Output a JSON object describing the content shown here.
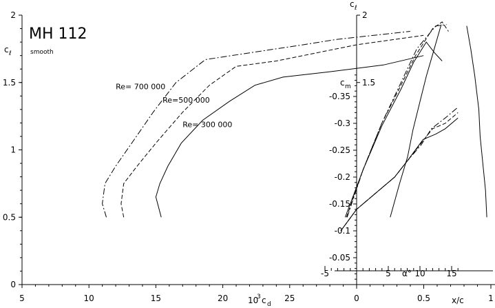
{
  "chart_data": {
    "type": "line",
    "title": "MH 112",
    "subtitle": "smooth",
    "polar": {
      "xlabel_prefix": "10",
      "xlabel_exp": "3",
      "xlabel_var": "c",
      "xlabel_sub": "d",
      "ylabel_var": "c",
      "ylabel_sub": "ℓ",
      "xlim": [
        5,
        30
      ],
      "ylim": [
        0,
        2
      ],
      "x_ticks": [
        5,
        10,
        15,
        20,
        25
      ],
      "y_ticks": [
        {
          "v": 0,
          "t": "0"
        },
        {
          "v": 0.5,
          "t": "0.5"
        },
        {
          "v": 1,
          "t": "1"
        },
        {
          "v": 1.5,
          "t": "1.5"
        },
        {
          "v": 2,
          "t": "2"
        }
      ],
      "series": [
        {
          "name": "Re= 700 000",
          "dash": "9 3 2 3",
          "points": [
            [
              11.3,
              0.5
            ],
            [
              11.0,
              0.6
            ],
            [
              11.2,
              0.75
            ],
            [
              12.0,
              0.88
            ],
            [
              13.2,
              1.05
            ],
            [
              14.8,
              1.28
            ],
            [
              16.5,
              1.5
            ],
            [
              18.7,
              1.67
            ],
            [
              22.0,
              1.72
            ],
            [
              26.0,
              1.78
            ],
            [
              28.5,
              1.82
            ],
            [
              34.0,
              1.88
            ]
          ]
        },
        {
          "name": "Re=500 000",
          "dash": "6 3",
          "points": [
            [
              12.6,
              0.5
            ],
            [
              12.4,
              0.6
            ],
            [
              12.6,
              0.75
            ],
            [
              13.6,
              0.88
            ],
            [
              15.0,
              1.05
            ],
            [
              17.0,
              1.28
            ],
            [
              19.0,
              1.48
            ],
            [
              21.0,
              1.62
            ],
            [
              24.0,
              1.66
            ],
            [
              27.5,
              1.73
            ],
            [
              30.0,
              1.78
            ],
            [
              35.0,
              1.85
            ]
          ]
        },
        {
          "name": "Re= 300 000",
          "dash": "",
          "points": [
            [
              15.4,
              0.5
            ],
            [
              15.0,
              0.65
            ],
            [
              15.3,
              0.75
            ],
            [
              15.9,
              0.88
            ],
            [
              16.9,
              1.05
            ],
            [
              18.5,
              1.22
            ],
            [
              20.5,
              1.36
            ],
            [
              22.4,
              1.48
            ],
            [
              24.5,
              1.54
            ],
            [
              28.0,
              1.58
            ],
            [
              32.0,
              1.63
            ],
            [
              35.0,
              1.7
            ]
          ]
        }
      ],
      "labels_pos": [
        [
          12.0,
          1.45
        ],
        [
          15.5,
          1.35
        ],
        [
          17.0,
          1.17
        ]
      ]
    },
    "alpha": {
      "xlabel": "α°",
      "xlim": [
        -5,
        16
      ],
      "x_ticks": [
        -5,
        5,
        10,
        15
      ],
      "series": [
        {
          "name": "Re= 700 000",
          "dash": "9 3 2 3",
          "points": [
            [
              -1.5,
              0.5
            ],
            [
              1,
              0.85
            ],
            [
              4,
              1.2
            ],
            [
              7,
              1.5
            ],
            [
              9.5,
              1.75
            ],
            [
              12.5,
              1.92
            ],
            [
              14.2,
              1.93
            ]
          ]
        },
        {
          "name": "Re=500 000",
          "dash": "6 3",
          "points": [
            [
              -1.6,
              0.5
            ],
            [
              1,
              0.85
            ],
            [
              4,
              1.2
            ],
            [
              7,
              1.48
            ],
            [
              9.3,
              1.7
            ],
            [
              12.0,
              1.9
            ],
            [
              13.5,
              1.95
            ],
            [
              14.5,
              1.88
            ]
          ]
        },
        {
          "name": "Re= 300 000",
          "dash": "",
          "points": [
            [
              -1.8,
              0.5
            ],
            [
              1,
              0.85
            ],
            [
              4,
              1.18
            ],
            [
              7,
              1.45
            ],
            [
              9.0,
              1.65
            ],
            [
              11.0,
              1.8
            ],
            [
              12.3,
              1.72
            ],
            [
              13.5,
              1.66
            ]
          ]
        }
      ],
      "cm_series": [
        {
          "name": "Re= 700 000",
          "dash": "9 3 2 3",
          "points": [
            [
              -2.5,
              0.1
            ],
            [
              0,
              0.14
            ],
            [
              3,
              0.17
            ],
            [
              6,
              0.2
            ],
            [
              8,
              0.23
            ],
            [
              10.2,
              0.26
            ],
            [
              11.8,
              0.29
            ],
            [
              14,
              0.31
            ],
            [
              16,
              0.33
            ]
          ]
        },
        {
          "name": "Re=500 000",
          "dash": "6 3",
          "points": [
            [
              -2.5,
              0.1
            ],
            [
              0,
              0.14
            ],
            [
              3,
              0.17
            ],
            [
              6,
              0.2
            ],
            [
              8,
              0.23
            ],
            [
              10.3,
              0.265
            ],
            [
              12,
              0.29
            ],
            [
              14,
              0.3
            ],
            [
              16,
              0.32
            ]
          ]
        },
        {
          "name": "Re= 300 000",
          "dash": "",
          "points": [
            [
              -2.5,
              0.1
            ],
            [
              0,
              0.14
            ],
            [
              3,
              0.17
            ],
            [
              6,
              0.2
            ],
            [
              8,
              0.23
            ],
            [
              10.5,
              0.27
            ],
            [
              12.5,
              0.28
            ],
            [
              14,
              0.29
            ],
            [
              16,
              0.31
            ]
          ]
        }
      ]
    },
    "cm_axis": {
      "label_var": "c",
      "label_sub": "m",
      "ylim": [
        0,
        0.4
      ],
      "ticks": [
        {
          "v": 0.05,
          "t": "-0.05"
        },
        {
          "v": 0.1,
          "t": "-0.1"
        },
        {
          "v": 0.15,
          "t": "-0.15"
        },
        {
          "v": 0.2,
          "t": "-0.2"
        },
        {
          "v": 0.25,
          "t": "-0.25"
        },
        {
          "v": 0.3,
          "t": "-0.3"
        },
        {
          "v": 0.35,
          "t": "-0.35"
        }
      ]
    },
    "cl_axis_right": {
      "ticks": [
        {
          "v": 1.5,
          "t": "1.5"
        },
        {
          "v": 2,
          "t": "2"
        }
      ]
    },
    "transition": {
      "xlabel": "x/c",
      "xlim": [
        0,
        1
      ],
      "x_ticks": [
        {
          "v": 0,
          "t": "0"
        },
        {
          "v": 0.5,
          "t": "0.5"
        },
        {
          "v": 1,
          "t": "1"
        }
      ]
    }
  }
}
